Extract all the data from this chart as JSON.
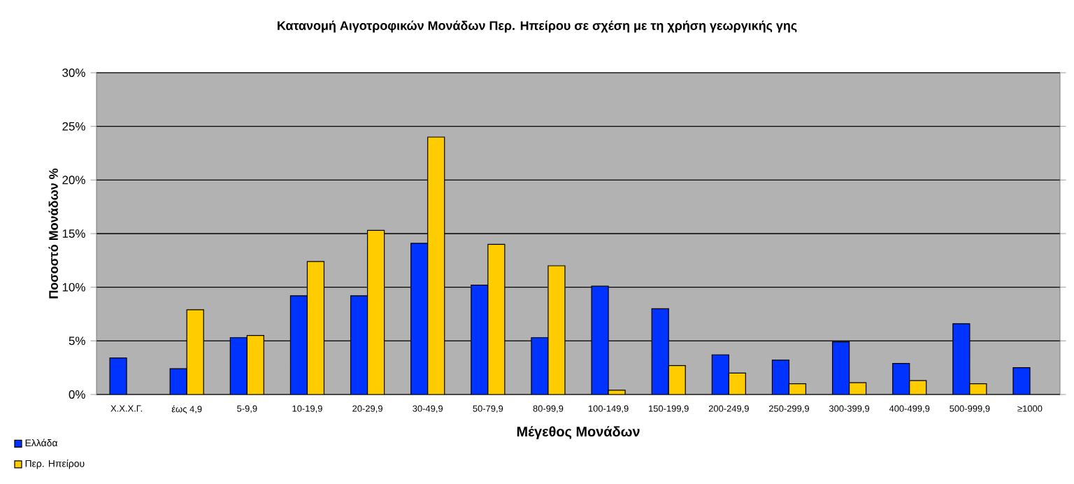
{
  "chart_data": {
    "type": "bar",
    "title": "Κατανομή Αιγοτροφικών Μονάδων Περ. Ηπείρου σε σχέση με τη χρήση γεωργικής γης",
    "xlabel": "Μέγεθος Μονάδων",
    "ylabel": "Ποσοστό Μονάδων %",
    "categories": [
      "Χ.Χ.Χ.Γ.",
      "έως 4,9",
      "5-9,9",
      "10-19,9",
      "20-29,9",
      "30-49,9",
      "50-79,9",
      "80-99,9",
      "100-149,9",
      "150-199,9",
      "200-249,9",
      "250-299,9",
      "300-399,9",
      "400-499,9",
      "500-999,9",
      "≥1000"
    ],
    "series": [
      {
        "name": "Ελλάδα",
        "color": "#0033ff",
        "values": [
          3.4,
          2.4,
          5.3,
          9.2,
          9.2,
          14.1,
          10.2,
          5.3,
          10.1,
          8.0,
          3.7,
          3.2,
          4.9,
          2.9,
          6.6,
          2.5
        ]
      },
      {
        "name": "Περ. Ηπείρου",
        "color": "#ffcc00",
        "values": [
          null,
          7.9,
          5.5,
          12.4,
          15.3,
          24.0,
          14.0,
          12.0,
          0.4,
          2.7,
          2.0,
          1.0,
          1.1,
          1.3,
          1.0,
          null
        ]
      }
    ],
    "ylim": [
      0,
      30
    ],
    "yticks": [
      {
        "value": 0,
        "label": "0%"
      },
      {
        "value": 5,
        "label": "5%"
      },
      {
        "value": 10,
        "label": "10%"
      },
      {
        "value": 15,
        "label": "15%"
      },
      {
        "value": 20,
        "label": "20%"
      },
      {
        "value": 25,
        "label": "25%"
      },
      {
        "value": 30,
        "label": "30%"
      }
    ],
    "grid": "y",
    "legend": "bottom left"
  }
}
